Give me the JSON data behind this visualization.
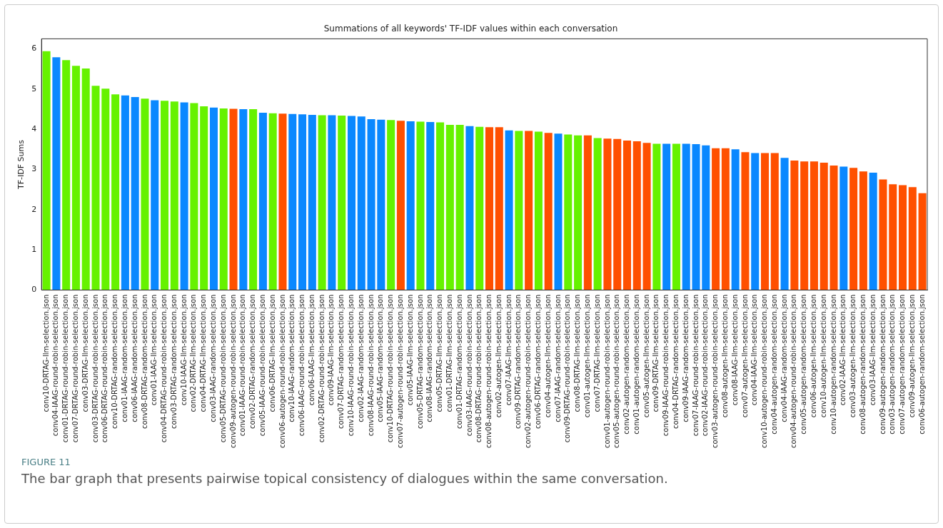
{
  "chart_data": {
    "type": "bar",
    "title": "Summations of all keywords' TF-IDF values within each conversation",
    "ylabel": "TF-IDF Sums",
    "annotations": [
      "FIGURE 11",
      "The bar graph that presents pairwise topical consistency of dialogues within the same conversation."
    ],
    "categories": [
      "conv10-DRTAG-llm-selection.json",
      "conv04-IAAG-round-robin-selection.json",
      "conv01-DRTAG-round-robin-selection.json",
      "conv07-DRTAG-round-robin-selection.json",
      "conv03-DRTAG-llm-selection.json",
      "conv03-DRTAG-round-robin-selection.json",
      "conv06-DRTAG-round-robin-selection.json",
      "conv10-DRTAG-random-selection.json",
      "conv01-IAAG-random-selection.json",
      "conv06-IAAG-random-selection.json",
      "conv08-DRTAG-random-selection.json",
      "conv01-IAAG-llm-selection.json",
      "conv04-DRTAG-round-robin-selection.json",
      "conv03-DRTAG-random-selection.json",
      "conv10-IAAG-llm-selection.json",
      "conv02-DRTAG-llm-selection.json",
      "conv04-DRTAG-llm-selection.json",
      "conv03-IAAG-random-selection.json",
      "conv05-DRTAG-round-robin-selection.json",
      "conv09-autogen-round-robin-selection.json",
      "conv01-IAAG-round-robin-selection.json",
      "conv02-DRTAG-random-selection.json",
      "conv05-IAAG-round-robin-selection.json",
      "conv06-DRTAG-llm-selection.json",
      "conv06-autogen-round-robin-selection.json",
      "conv10-IAAG-random-selection.json",
      "conv06-IAAG-round-robin-selection.json",
      "conv06-IAAG-llm-selection.json",
      "conv02-DRTAG-round-robin-selection.json",
      "conv09-IAAG-llm-selection.json",
      "conv07-DRTAG-random-selection.json",
      "conv10-IAAG-round-robin-selection.json",
      "conv02-IAAG-random-selection.json",
      "conv08-IAAG-round-robin-selection.json",
      "conv05-IAAG-random-selection.json",
      "conv10-DRTAG-round-robin-selection.json",
      "conv07-autogen-round-robin-selection.json",
      "conv05-IAAG-llm-selection.json",
      "conv05-DRTAG-random-selection.json",
      "conv08-IAAG-random-selection.json",
      "conv05-DRTAG-llm-selection.json",
      "conv01-DRTAG-llm-selection.json",
      "conv01-DRTAG-random-selection.json",
      "conv03-IAAG-round-robin-selection.json",
      "conv08-DRTAG-round-robin-selection.json",
      "conv08-autogen-round-robin-selection.json",
      "conv02-autogen-llm-selection.json",
      "conv07-IAAG-llm-selection.json",
      "conv09-DRTAG-random-selection.json",
      "conv02-autogen-round-robin-selection.json",
      "conv06-DRTAG-random-selection.json",
      "conv04-autogen-llm-selection.json",
      "conv07-IAAG-random-selection.json",
      "conv09-DRTAG-round-robin-selection.json",
      "conv08-DRTAG-llm-selection.json",
      "conv01-autogen-llm-selection.json",
      "conv07-DRTAG-llm-selection.json",
      "conv01-autogen-round-robin-selection.json",
      "conv05-autogen-round-robin-selection.json",
      "conv02-autogen-random-selection.json",
      "conv01-autogen-random-selection.json",
      "conv05-autogen-llm-selection.json",
      "conv09-DRTAG-llm-selection.json",
      "conv09-IAAG-round-robin-selection.json",
      "conv04-DRTAG-random-selection.json",
      "conv09-IAAG-random-selection.json",
      "conv07-IAAG-round-robin-selection.json",
      "conv02-IAAG-round-robin-selection.json",
      "conv03-autogen-round-robin-selection.json",
      "conv08-autogen-llm-selection.json",
      "conv08-IAAG-llm-selection.json",
      "conv07-autogen-llm-selection.json",
      "conv04-IAAG-llm-selection.json",
      "conv10-autogen-round-robin-selection.json",
      "conv04-autogen-random-selection.json",
      "conv04-IAAG-random-selection.json",
      "conv04-autogen-round-robin-selection.json",
      "conv05-autogen-random-selection.json",
      "conv06-autogen-llm-selection.json",
      "conv10-autogen-llm-selection.json",
      "conv10-autogen-random-selection.json",
      "conv02-IAAG-llm-selection.json",
      "conv03-autogen-llm-selection.json",
      "conv08-autogen-random-selection.json",
      "conv03-IAAG-llm-selection.json",
      "conv09-autogen-random-selection.json",
      "conv03-autogen-random-selection.json",
      "conv07-autogen-random-selection.json",
      "conv09-autogen-llm-selection.json",
      "conv06-autogen-random-selection.json"
    ],
    "values": [
      5.94,
      5.79,
      5.72,
      5.58,
      5.51,
      5.08,
      5.01,
      4.87,
      4.84,
      4.8,
      4.76,
      4.72,
      4.71,
      4.69,
      4.67,
      4.65,
      4.57,
      4.54,
      4.52,
      4.51,
      4.5,
      4.5,
      4.41,
      4.4,
      4.39,
      4.38,
      4.37,
      4.36,
      4.35,
      4.35,
      4.34,
      4.33,
      4.32,
      4.25,
      4.24,
      4.23,
      4.21,
      4.2,
      4.19,
      4.18,
      4.17,
      4.11,
      4.11,
      4.08,
      4.06,
      4.05,
      4.05,
      3.97,
      3.96,
      3.96,
      3.94,
      3.91,
      3.89,
      3.87,
      3.85,
      3.85,
      3.78,
      3.77,
      3.76,
      3.72,
      3.7,
      3.66,
      3.64,
      3.64,
      3.64,
      3.64,
      3.63,
      3.6,
      3.53,
      3.53,
      3.5,
      3.43,
      3.41,
      3.41,
      3.41,
      3.29,
      3.22,
      3.2,
      3.2,
      3.17,
      3.1,
      3.07,
      3.04,
      2.95,
      2.92,
      2.75,
      2.63,
      2.61,
      2.56,
      2.41
    ],
    "colors": [
      "#66f200",
      "#0a88ff",
      "#66f200",
      "#66f200",
      "#66f200",
      "#66f200",
      "#66f200",
      "#66f200",
      "#0a88ff",
      "#0a88ff",
      "#66f200",
      "#0a88ff",
      "#66f200",
      "#66f200",
      "#0a88ff",
      "#66f200",
      "#66f200",
      "#0a88ff",
      "#66f200",
      "#ff5000",
      "#0a88ff",
      "#66f200",
      "#0a88ff",
      "#66f200",
      "#ff5000",
      "#0a88ff",
      "#0a88ff",
      "#0a88ff",
      "#66f200",
      "#0a88ff",
      "#66f200",
      "#0a88ff",
      "#0a88ff",
      "#0a88ff",
      "#0a88ff",
      "#66f200",
      "#ff5000",
      "#0a88ff",
      "#66f200",
      "#0a88ff",
      "#66f200",
      "#66f200",
      "#66f200",
      "#0a88ff",
      "#66f200",
      "#ff5000",
      "#ff5000",
      "#0a88ff",
      "#66f200",
      "#ff5000",
      "#66f200",
      "#ff5000",
      "#0a88ff",
      "#66f200",
      "#66f200",
      "#ff5000",
      "#66f200",
      "#ff5000",
      "#ff5000",
      "#ff5000",
      "#ff5000",
      "#ff5000",
      "#66f200",
      "#0a88ff",
      "#66f200",
      "#0a88ff",
      "#0a88ff",
      "#0a88ff",
      "#ff5000",
      "#ff5000",
      "#0a88ff",
      "#ff5000",
      "#0a88ff",
      "#ff5000",
      "#ff5000",
      "#0a88ff",
      "#ff5000",
      "#ff5000",
      "#ff5000",
      "#ff5000",
      "#ff5000",
      "#0a88ff",
      "#ff5000",
      "#ff5000",
      "#0a88ff",
      "#ff5000",
      "#ff5000",
      "#ff5000",
      "#ff5000",
      "#ff5000"
    ],
    "ylim": [
      0,
      6.25
    ],
    "yticks": [
      0,
      1,
      2,
      3,
      4,
      5,
      6
    ],
    "grid": false,
    "legend": false
  }
}
